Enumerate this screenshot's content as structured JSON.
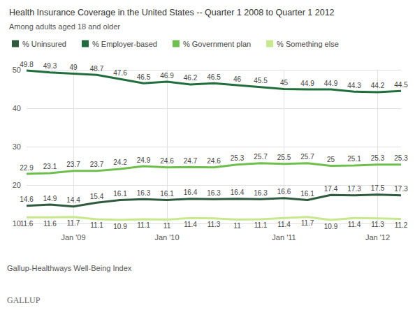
{
  "chart_data": {
    "type": "line",
    "title": "Health Insurance Coverage in the United States -- Quarter 1 2008 to Quarter 1 2012",
    "subtitle": "Among adults aged 18 and older",
    "source": "Gallup-Healthways Well-Being Index",
    "brand": "GALLUP",
    "categories": [
      null,
      null,
      "Jan '09",
      null,
      null,
      null,
      "Jan '10",
      null,
      null,
      null,
      null,
      "Jan '11",
      null,
      null,
      null,
      "Jan '12",
      null
    ],
    "series": [
      {
        "name": "% Uninsured",
        "color": "#2f5a3e",
        "values": [
          14.6,
          14.9,
          14.4,
          15.4,
          16.1,
          16.3,
          16.1,
          16.4,
          16.3,
          16.4,
          16.3,
          16.6,
          16.1,
          17.4,
          17.3,
          17.5,
          17.3
        ]
      },
      {
        "name": "% Employer-based",
        "color": "#1f6e3b",
        "values": [
          49.8,
          49.3,
          49.0,
          48.7,
          47.6,
          46.5,
          46.9,
          46.2,
          46.5,
          46.0,
          45.5,
          45.0,
          44.9,
          44.9,
          44.3,
          44.2,
          44.5
        ]
      },
      {
        "name": "% Government plan",
        "color": "#6fbf4f",
        "values": [
          22.9,
          23.1,
          23.7,
          23.7,
          24.2,
          24.9,
          24.6,
          24.7,
          24.6,
          25.3,
          25.7,
          25.5,
          25.7,
          25.0,
          25.1,
          25.3,
          25.3
        ]
      },
      {
        "name": "% Something else",
        "color": "#c8e88e",
        "values": [
          11.6,
          11.6,
          11.7,
          11.1,
          10.9,
          11.1,
          11.0,
          11.4,
          11.3,
          11.0,
          11.1,
          11.4,
          11.7,
          10.9,
          11.4,
          11.3,
          11.2
        ]
      }
    ],
    "ylim": [
      10,
      50
    ],
    "yticks": [
      10,
      20,
      30,
      40,
      50
    ],
    "grid": true,
    "legend": "top-left",
    "data_labels": true
  }
}
